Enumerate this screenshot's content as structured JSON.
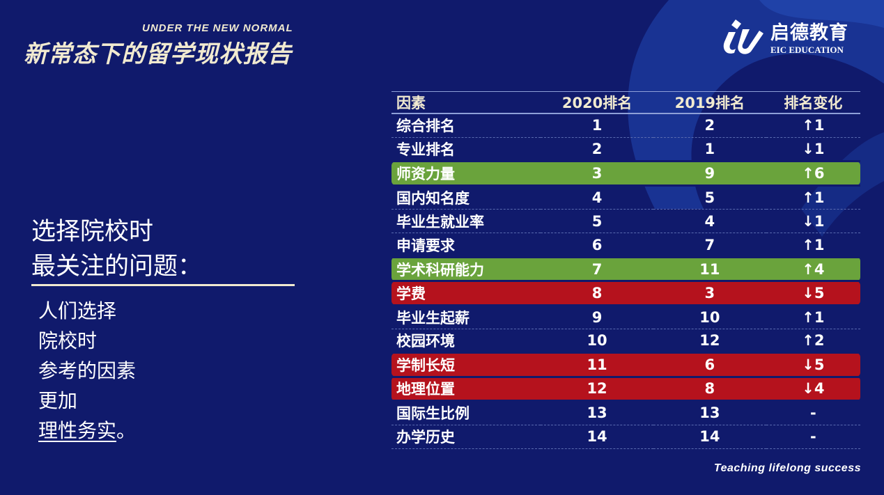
{
  "header": {
    "title_en": "UNDER THE NEW NORMAL",
    "title_cn": "新常态下的留学现状报告"
  },
  "logo": {
    "name_cn": "启德教育",
    "name_en": "EIC EDUCATION"
  },
  "left": {
    "heading_line1": "选择院校时",
    "heading_line2": "最关注的问题：",
    "body_lines": [
      "人们选择",
      "院校时",
      "参考的因素",
      "更加"
    ],
    "emphasis": "理性务实",
    "emphasis_suffix": "。"
  },
  "table": {
    "headers": [
      "因素",
      "2020排名",
      "2019排名",
      "排名变化"
    ],
    "rows": [
      {
        "factor": "综合排名",
        "r2020": "1",
        "r2019": "2",
        "change": "↑1",
        "highlight": "none"
      },
      {
        "factor": "专业排名",
        "r2020": "2",
        "r2019": "1",
        "change": "↓1",
        "highlight": "none"
      },
      {
        "factor": "师资力量",
        "r2020": "3",
        "r2019": "9",
        "change": "↑6",
        "highlight": "green"
      },
      {
        "factor": "国内知名度",
        "r2020": "4",
        "r2019": "5",
        "change": "↑1",
        "highlight": "none"
      },
      {
        "factor": "毕业生就业率",
        "r2020": "5",
        "r2019": "4",
        "change": "↓1",
        "highlight": "none"
      },
      {
        "factor": "申请要求",
        "r2020": "6",
        "r2019": "7",
        "change": "↑1",
        "highlight": "none"
      },
      {
        "factor": "学术科研能力",
        "r2020": "7",
        "r2019": "11",
        "change": "↑4",
        "highlight": "green"
      },
      {
        "factor": "学费",
        "r2020": "8",
        "r2019": "3",
        "change": "↓5",
        "highlight": "red"
      },
      {
        "factor": "毕业生起薪",
        "r2020": "9",
        "r2019": "10",
        "change": "↑1",
        "highlight": "none"
      },
      {
        "factor": "校园环境",
        "r2020": "10",
        "r2019": "12",
        "change": "↑2",
        "highlight": "none"
      },
      {
        "factor": "学制长短",
        "r2020": "11",
        "r2019": "6",
        "change": "↓5",
        "highlight": "red"
      },
      {
        "factor": "地理位置",
        "r2020": "12",
        "r2019": "8",
        "change": "↓4",
        "highlight": "red"
      },
      {
        "factor": "国际生比例",
        "r2020": "13",
        "r2019": "13",
        "change": "-",
        "highlight": "none"
      },
      {
        "factor": "办学历史",
        "r2020": "14",
        "r2019": "14",
        "change": "-",
        "highlight": "none"
      }
    ]
  },
  "colors": {
    "background": "#101a6c",
    "accent_cream": "#f1ead0",
    "highlight_green": "#6aa33c",
    "highlight_red": "#b5121d"
  },
  "footer": {
    "slogan": "Teaching lifelong success"
  }
}
